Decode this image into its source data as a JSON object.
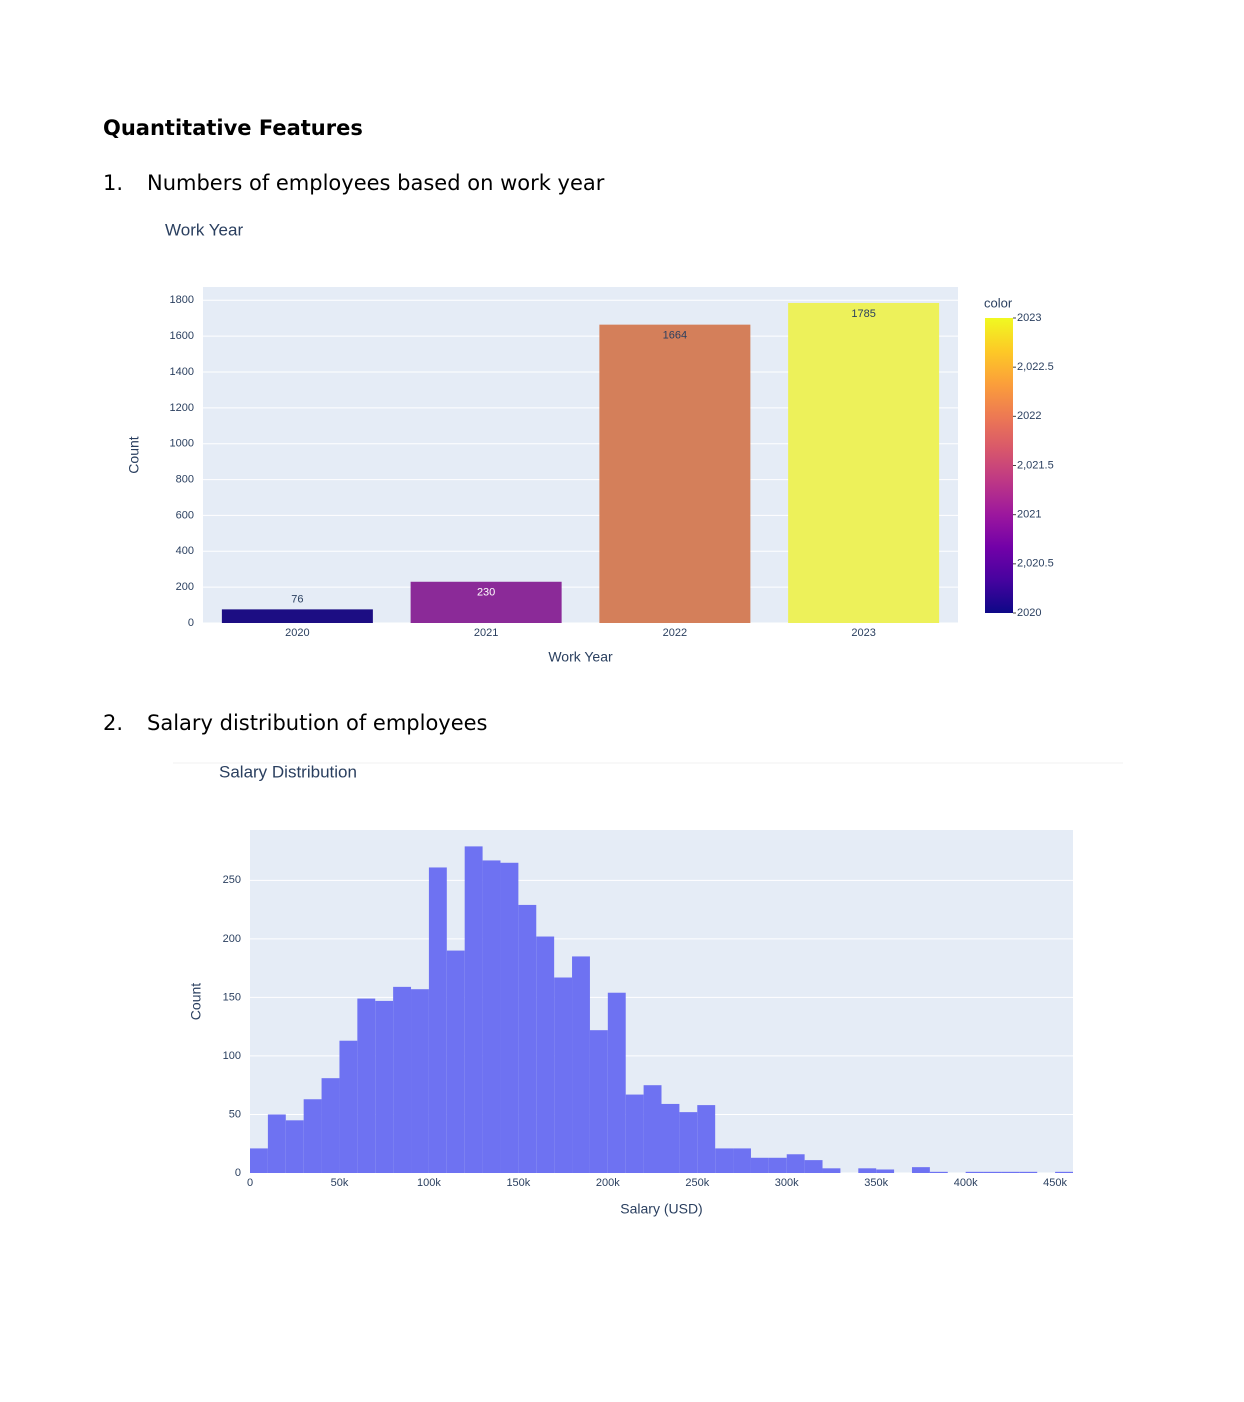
{
  "heading": "Quantitative Features",
  "sections": [
    {
      "number": "1.",
      "title": "Numbers of employees based on work year"
    },
    {
      "number": "2.",
      "title": "Salary distribution of employees"
    }
  ],
  "chart_data": [
    {
      "type": "bar",
      "title": "Work Year",
      "x_label": "Work Year",
      "y_label": "Count",
      "categories": [
        "2020",
        "2021",
        "2022",
        "2023"
      ],
      "values": [
        76,
        230,
        1664,
        1785
      ],
      "colors": [
        "#1c0d83",
        "#8b2a98",
        "#d47f5a",
        "#edf15a"
      ],
      "ylim": [
        0,
        1874
      ],
      "yticks": [
        0,
        200,
        400,
        600,
        800,
        1000,
        1200,
        1400,
        1600,
        1800
      ],
      "grid": true,
      "color_title": "color",
      "clim": [
        2020,
        2023
      ],
      "colorscale": [
        "#0d0887",
        "#46039f",
        "#7201a8",
        "#9c179e",
        "#bd3786",
        "#d8576b",
        "#ed7953",
        "#fb9f3a",
        "#fdca26",
        "#f0f921"
      ],
      "cticks": [
        2020,
        {
          "value": 2020.5,
          "label": "2,020.5"
        },
        2021,
        {
          "value": 2021.5,
          "label": "2,021.5"
        },
        2022,
        {
          "value": 2022.5,
          "label": "2,022.5"
        },
        2023
      ]
    },
    {
      "type": "histogram",
      "title": "Salary Distribution",
      "x_label": "Salary (USD)",
      "y_label": "Count",
      "bins": [
        0,
        10000,
        20000,
        30000,
        40000,
        50000,
        60000,
        70000,
        80000,
        90000,
        100000,
        110000,
        120000,
        130000,
        140000,
        150000,
        160000,
        170000,
        180000,
        190000,
        200000,
        210000,
        220000,
        230000,
        240000,
        250000,
        260000,
        270000,
        280000,
        290000,
        300000,
        310000,
        320000,
        330000,
        340000,
        350000,
        360000,
        370000,
        380000,
        390000,
        400000,
        410000,
        420000,
        430000,
        440000,
        450000,
        460000
      ],
      "values": [
        21,
        50,
        45,
        63,
        81,
        113,
        149,
        147,
        159,
        157,
        261,
        190,
        279,
        267,
        265,
        229,
        202,
        167,
        185,
        122,
        154,
        67,
        75,
        59,
        52,
        58,
        21,
        21,
        13,
        13,
        16,
        11,
        4,
        0,
        4,
        3,
        0,
        5,
        1,
        0,
        1,
        1,
        1,
        1,
        0,
        1
      ],
      "color": "#6e72f2",
      "xlim": [
        0,
        460000
      ],
      "ylim": [
        0,
        293
      ],
      "xticks": [
        0,
        {
          "value": 50000,
          "label": "50k"
        },
        {
          "value": 100000,
          "label": "100k"
        },
        {
          "value": 150000,
          "label": "150k"
        },
        {
          "value": 200000,
          "label": "200k"
        },
        {
          "value": 250000,
          "label": "250k"
        },
        {
          "value": 300000,
          "label": "300k"
        },
        {
          "value": 350000,
          "label": "350k"
        },
        {
          "value": 400000,
          "label": "400k"
        },
        {
          "value": 450000,
          "label": "450k"
        }
      ],
      "yticks": [
        0,
        50,
        100,
        150,
        200,
        250
      ],
      "grid": true
    }
  ]
}
